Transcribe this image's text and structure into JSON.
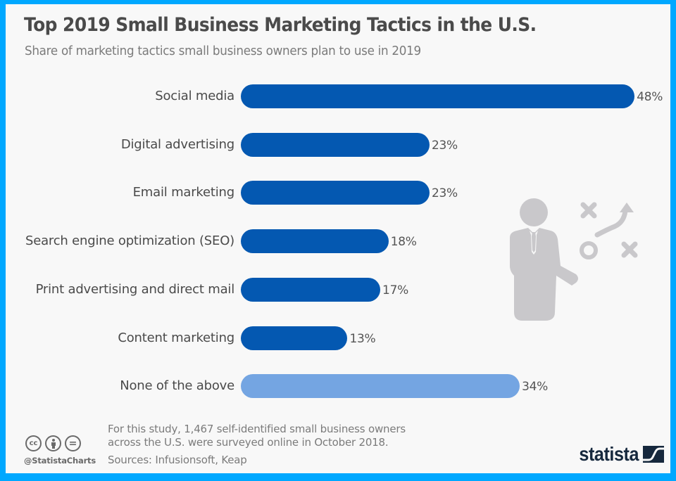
{
  "header": {
    "title": "Top 2019 Small Business Marketing Tactics in the U.S.",
    "subtitle": "Share of marketing tactics small business owners plan to use in 2019"
  },
  "colors": {
    "frame": "#00a8ff",
    "background": "#f8f8f8",
    "bar_primary": "#0458b1",
    "bar_secondary": "#74a5e2",
    "illustration": "#c9c8cb",
    "logo": "#16283d"
  },
  "bars": [
    {
      "label": "Social media",
      "value": 48,
      "value_label": "48%",
      "style": "primary"
    },
    {
      "label": "Digital advertising",
      "value": 23,
      "value_label": "23%",
      "style": "primary"
    },
    {
      "label": "Email marketing",
      "value": 23,
      "value_label": "23%",
      "style": "primary"
    },
    {
      "label": "Search engine optimization (SEO)",
      "value": 18,
      "value_label": "18%",
      "style": "primary"
    },
    {
      "label": "Print advertising and direct mail",
      "value": 17,
      "value_label": "17%",
      "style": "primary"
    },
    {
      "label": "Content marketing",
      "value": 13,
      "value_label": "13%",
      "style": "primary"
    },
    {
      "label": "None of the above",
      "value": 34,
      "value_label": "34%",
      "style": "light"
    }
  ],
  "illustration": {
    "icon": "strategy-businessman-icon"
  },
  "footer": {
    "note_line1": "For this study, 1,467 self-identified small business owners",
    "note_line2": "across the U.S. were surveyed online in October 2018.",
    "sources": "Sources: Infusionsoft, Keap",
    "license_icons": [
      {
        "name": "cc-icon",
        "glyph": "cc"
      },
      {
        "name": "by-attribution-icon",
        "glyph": ""
      },
      {
        "name": "nd-no-derivatives-icon",
        "glyph": "="
      }
    ],
    "handle": "@StatistaCharts",
    "logo_text": "statista"
  },
  "chart_data": {
    "type": "bar",
    "orientation": "horizontal",
    "title": "Top 2019 Small Business Marketing Tactics in the U.S.",
    "subtitle": "Share of marketing tactics small business owners plan to use in 2019",
    "categories": [
      "Social media",
      "Digital advertising",
      "Email marketing",
      "Search engine optimization (SEO)",
      "Print advertising and direct mail",
      "Content marketing",
      "None of the above"
    ],
    "values": [
      48,
      23,
      23,
      18,
      17,
      13,
      34
    ],
    "unit": "%",
    "xlabel": "",
    "ylabel": "",
    "xlim": [
      0,
      50
    ],
    "grid": false,
    "legend": null,
    "data_labels": true,
    "highlight": {
      "None of the above": "#74a5e2"
    },
    "note": "For this study, 1,467 self-identified small business owners across the U.S. were surveyed online in October 2018.",
    "source": "Sources: Infusionsoft, Keap"
  }
}
